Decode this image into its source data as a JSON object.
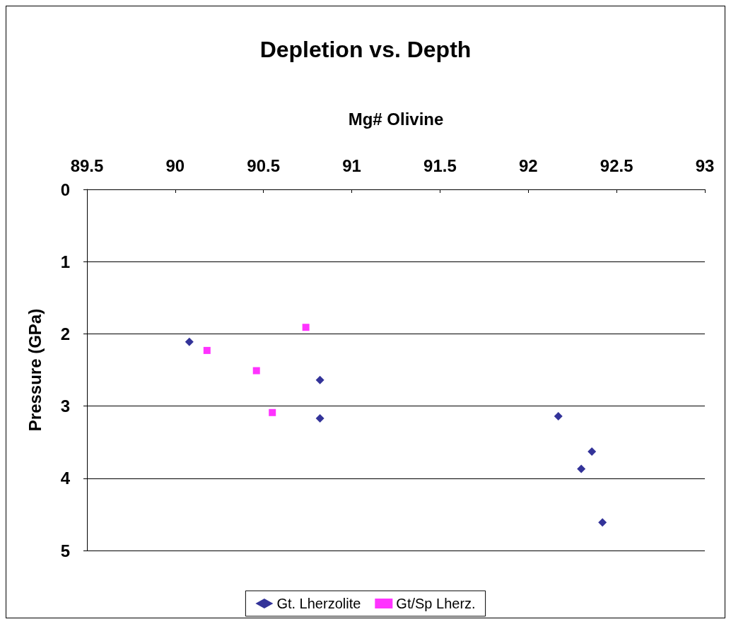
{
  "chart_data": {
    "type": "scatter",
    "title": "Depletion vs. Depth",
    "xlabel": "Mg# Olivine",
    "ylabel": "Pressure (GPa)",
    "series": [
      {
        "name": "Gt. Lherzolite",
        "color": "#000080",
        "marker": "diamond",
        "x": [
          90.08,
          90.82,
          90.82,
          92.17,
          92.36,
          92.3,
          92.42
        ],
        "values": [
          2.11,
          2.64,
          3.17,
          3.14,
          3.63,
          3.87,
          4.61
        ]
      },
      {
        "name": "Gt/Sp Lherz.",
        "color": "#ff00ff",
        "marker": "square",
        "x": [
          90.18,
          90.46,
          90.55,
          90.74
        ],
        "values": [
          2.23,
          2.51,
          3.09,
          1.91
        ]
      }
    ],
    "xlim": [
      89.5,
      93
    ],
    "xticks": [
      89.5,
      90,
      90.5,
      91,
      91.5,
      92,
      92.5,
      93
    ],
    "ylim": [
      5,
      0
    ],
    "yticks": [
      0,
      1,
      2,
      3,
      4,
      5
    ],
    "grid": "y",
    "legend": "bottom"
  }
}
